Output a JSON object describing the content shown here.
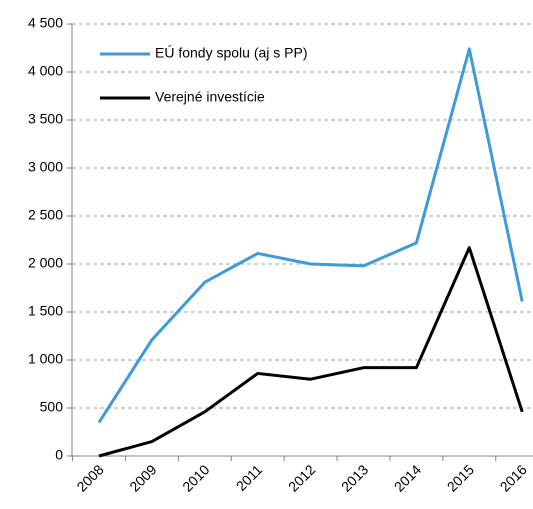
{
  "chart_data": {
    "type": "line",
    "categories": [
      "2008",
      "2009",
      "2010",
      "2011",
      "2012",
      "2013",
      "2014",
      "2015",
      "2016"
    ],
    "series": [
      {
        "name": "EÚ fondy spolu (aj s PP)",
        "color": "#3e9ad8",
        "values": [
          350,
          1210,
          1810,
          2110,
          2000,
          1980,
          2220,
          4240,
          1610
        ]
      },
      {
        "name": "Verejné investície",
        "color": "#000000",
        "values": [
          0,
          150,
          460,
          860,
          800,
          920,
          920,
          2170,
          460
        ]
      }
    ],
    "ylim": [
      0,
      4500
    ],
    "yticks": [
      0,
      500,
      {
        "value": 1000,
        "label": "1 000"
      },
      {
        "value": 1500,
        "label": "1 500"
      },
      {
        "value": 2000,
        "label": "2 000"
      },
      {
        "value": 2500,
        "label": "2 500"
      },
      {
        "value": 3000,
        "label": "3 000"
      },
      {
        "value": 3500,
        "label": "3 500"
      },
      {
        "value": 4000,
        "label": "4 000"
      },
      {
        "value": 4500,
        "label": "4 500"
      }
    ],
    "grid": true,
    "legend": "upper left"
  }
}
